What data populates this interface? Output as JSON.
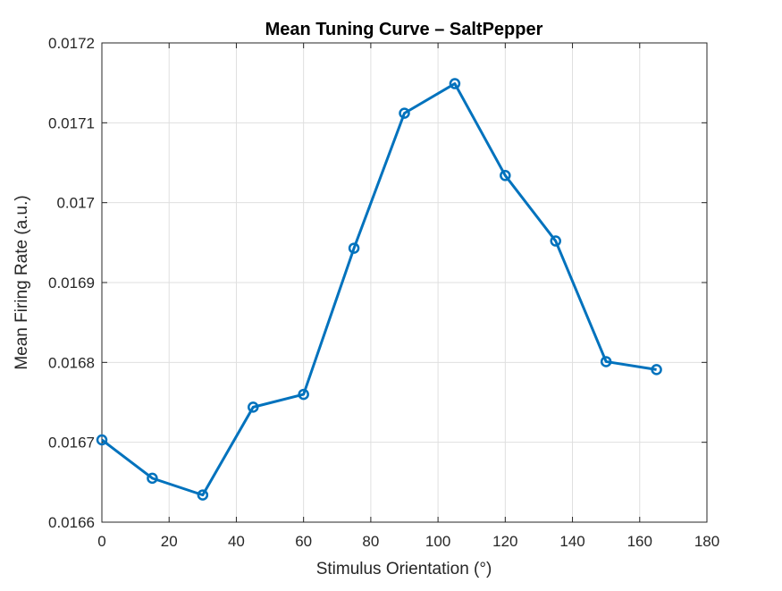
{
  "chart_data": {
    "type": "line",
    "title": "Mean Tuning Curve – SaltPepper",
    "xlabel": "Stimulus Orientation (°)",
    "ylabel": "Mean Firing Rate (a.u.)",
    "xlim": [
      0,
      180
    ],
    "ylim": [
      0.0166,
      0.0172
    ],
    "xticks": [
      "0",
      "20",
      "40",
      "60",
      "80",
      "100",
      "120",
      "140",
      "160",
      "180"
    ],
    "yticks": [
      "0.0166",
      "0.0167",
      "0.0168",
      "0.0169",
      "0.017",
      "0.0171",
      "0.0172"
    ],
    "grid": true,
    "marker": "circle",
    "color": "#0072BD",
    "x": [
      0,
      15,
      30,
      45,
      60,
      75,
      90,
      105,
      120,
      135,
      150,
      165
    ],
    "series": [
      {
        "values": [
          0.016703,
          0.016655,
          0.016634,
          0.016744,
          0.01676,
          0.016943,
          0.017112,
          0.017149,
          0.017034,
          0.016952,
          0.016801,
          0.016791
        ]
      }
    ]
  }
}
